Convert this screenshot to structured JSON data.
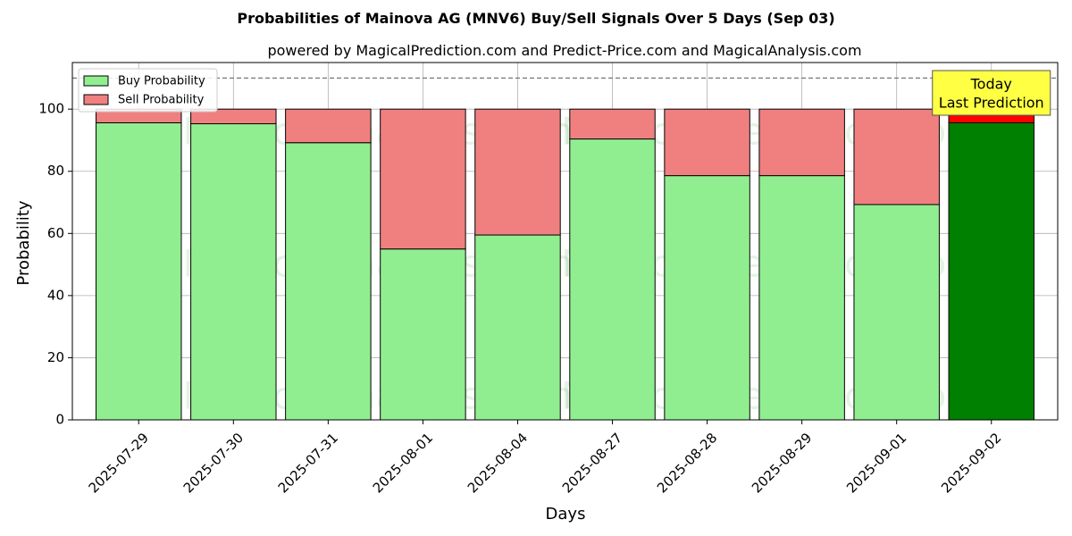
{
  "chart_data": {
    "type": "bar",
    "stacked": true,
    "title": "Probabilities of Mainova AG (MNV6) Buy/Sell Signals Over 5 Days (Sep 03)",
    "subtitle": "powered by MagicalPrediction.com and Predict-Price.com and MagicalAnalysis.com",
    "xlabel": "Days",
    "ylabel": "Probability",
    "ylim": [
      0,
      115
    ],
    "yticks": [
      0,
      20,
      40,
      60,
      80,
      100
    ],
    "grid": true,
    "legend": "top-left",
    "reference_line": 110,
    "categories": [
      "2025-07-29",
      "2025-07-30",
      "2025-07-31",
      "2025-08-01",
      "2025-08-04",
      "2025-08-27",
      "2025-08-28",
      "2025-08-29",
      "2025-09-01",
      "2025-09-02"
    ],
    "series": [
      {
        "name": "Buy Probability",
        "color": "#90ee90",
        "values": [
          95.6,
          95.3,
          89.2,
          55.0,
          59.5,
          90.4,
          78.6,
          78.6,
          69.3,
          95.6
        ]
      },
      {
        "name": "Sell Probability",
        "color": "#f08080",
        "values": [
          4.4,
          4.7,
          10.8,
          45.0,
          40.5,
          9.6,
          21.4,
          21.4,
          30.7,
          4.4
        ]
      }
    ],
    "highlight": {
      "index": 9,
      "buy_color": "#008000",
      "sell_color": "#ff0000"
    },
    "annotation": {
      "lines": [
        "Today",
        "Last Prediction"
      ],
      "box_color": "#ffff44"
    },
    "watermarks": [
      "MagicalAnalysis.com",
      "MagicalPrediction.com",
      "MagicalAnalysis.com",
      "MagicalPrediction.com",
      "MagicalAnalysis.com",
      "MagicalPrediction.com"
    ]
  }
}
